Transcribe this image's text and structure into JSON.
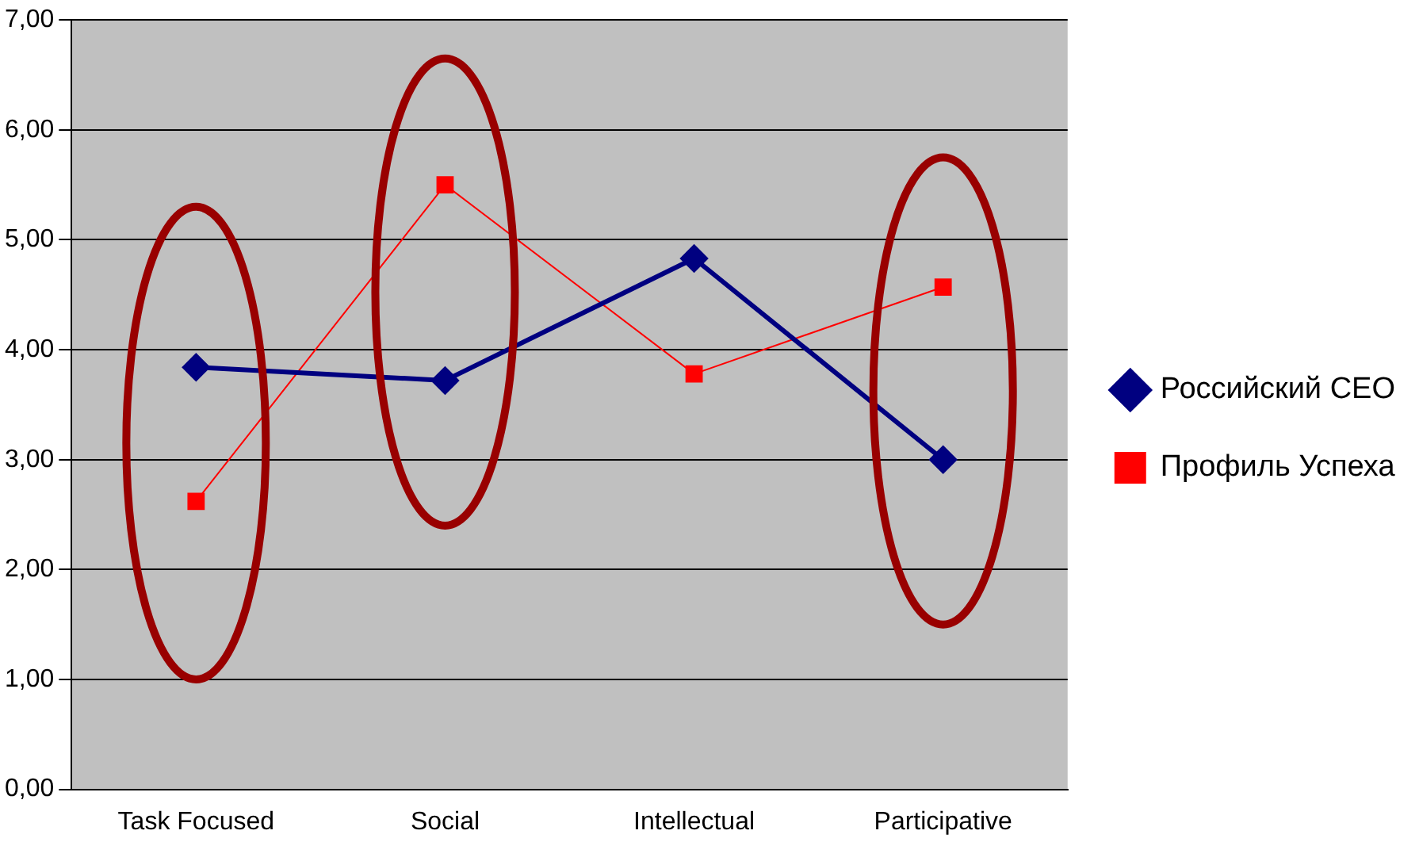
{
  "chart_data": {
    "type": "line",
    "categories": [
      "Task Focused",
      "Social",
      "Intellectual",
      "Participative"
    ],
    "series": [
      {
        "name": "Российский CEO",
        "color": "#000080",
        "values": [
          3.84,
          3.72,
          4.83,
          3.0
        ],
        "marker": "diamond"
      },
      {
        "name": "Профиль Успеха",
        "color": "#ff0000",
        "values": [
          2.62,
          5.5,
          3.78,
          4.57
        ],
        "marker": "square"
      }
    ],
    "ylim": [
      0,
      7
    ],
    "yticks": [
      {
        "value": 0,
        "label": "0,00"
      },
      {
        "value": 1,
        "label": "1,00"
      },
      {
        "value": 2,
        "label": "2,00"
      },
      {
        "value": 3,
        "label": "3,00"
      },
      {
        "value": 4,
        "label": "4,00"
      },
      {
        "value": 5,
        "label": "5,00"
      },
      {
        "value": 6,
        "label": "6,00"
      },
      {
        "value": 7,
        "label": "7,00"
      }
    ],
    "grid": "y",
    "legend": "right"
  }
}
